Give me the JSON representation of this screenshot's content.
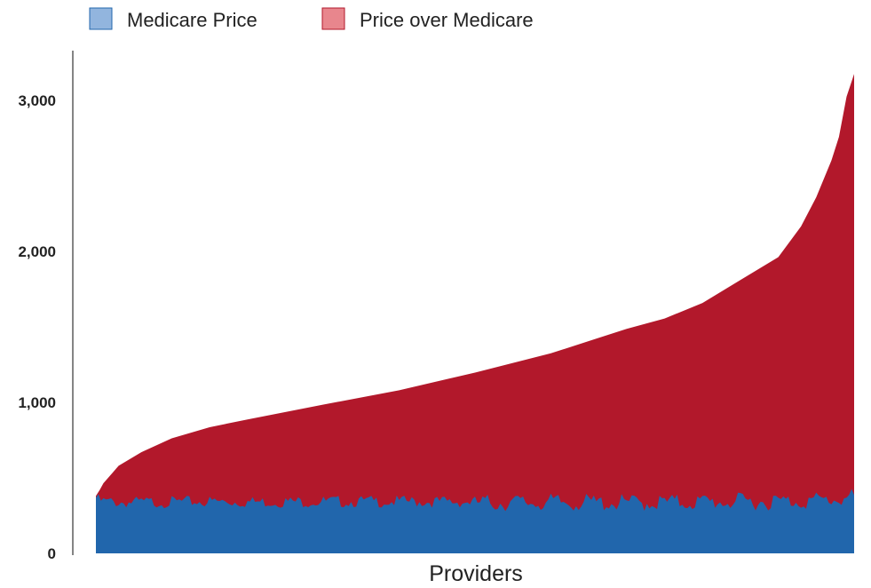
{
  "chart_data": {
    "type": "area",
    "stacked": true,
    "title": "",
    "xlabel": "Providers",
    "ylabel": "",
    "ylim": [
      0,
      3300
    ],
    "yticks": [
      0,
      1000,
      2000,
      3000
    ],
    "ytick_labels": [
      "0",
      "1,000",
      "2,000",
      "3,000"
    ],
    "legend_position": "top-left",
    "grid": false,
    "x_fraction": [
      0,
      0.005,
      0.01,
      0.03,
      0.06,
      0.1,
      0.15,
      0.2,
      0.3,
      0.4,
      0.5,
      0.6,
      0.7,
      0.75,
      0.8,
      0.85,
      0.9,
      0.93,
      0.95,
      0.97,
      0.98,
      0.99,
      1.0
    ],
    "series": [
      {
        "name": "Medicare Price",
        "color": "#2166ac",
        "legend_color": "#92b5de",
        "values": [
          380,
          360,
          355,
          350,
          350,
          352,
          355,
          352,
          355,
          355,
          352,
          355,
          352,
          355,
          358,
          360,
          362,
          365,
          368,
          372,
          378,
          385,
          395
        ]
      },
      {
        "name": "Price over Medicare",
        "color": "#b2182b",
        "legend_color": "#e8868d",
        "values": [
          0,
          60,
          110,
          230,
          320,
          410,
          480,
          535,
          630,
          725,
          845,
          970,
          1135,
          1200,
          1300,
          1450,
          1600,
          1800,
          1990,
          2230,
          2380,
          2640,
          2780
        ]
      }
    ]
  }
}
